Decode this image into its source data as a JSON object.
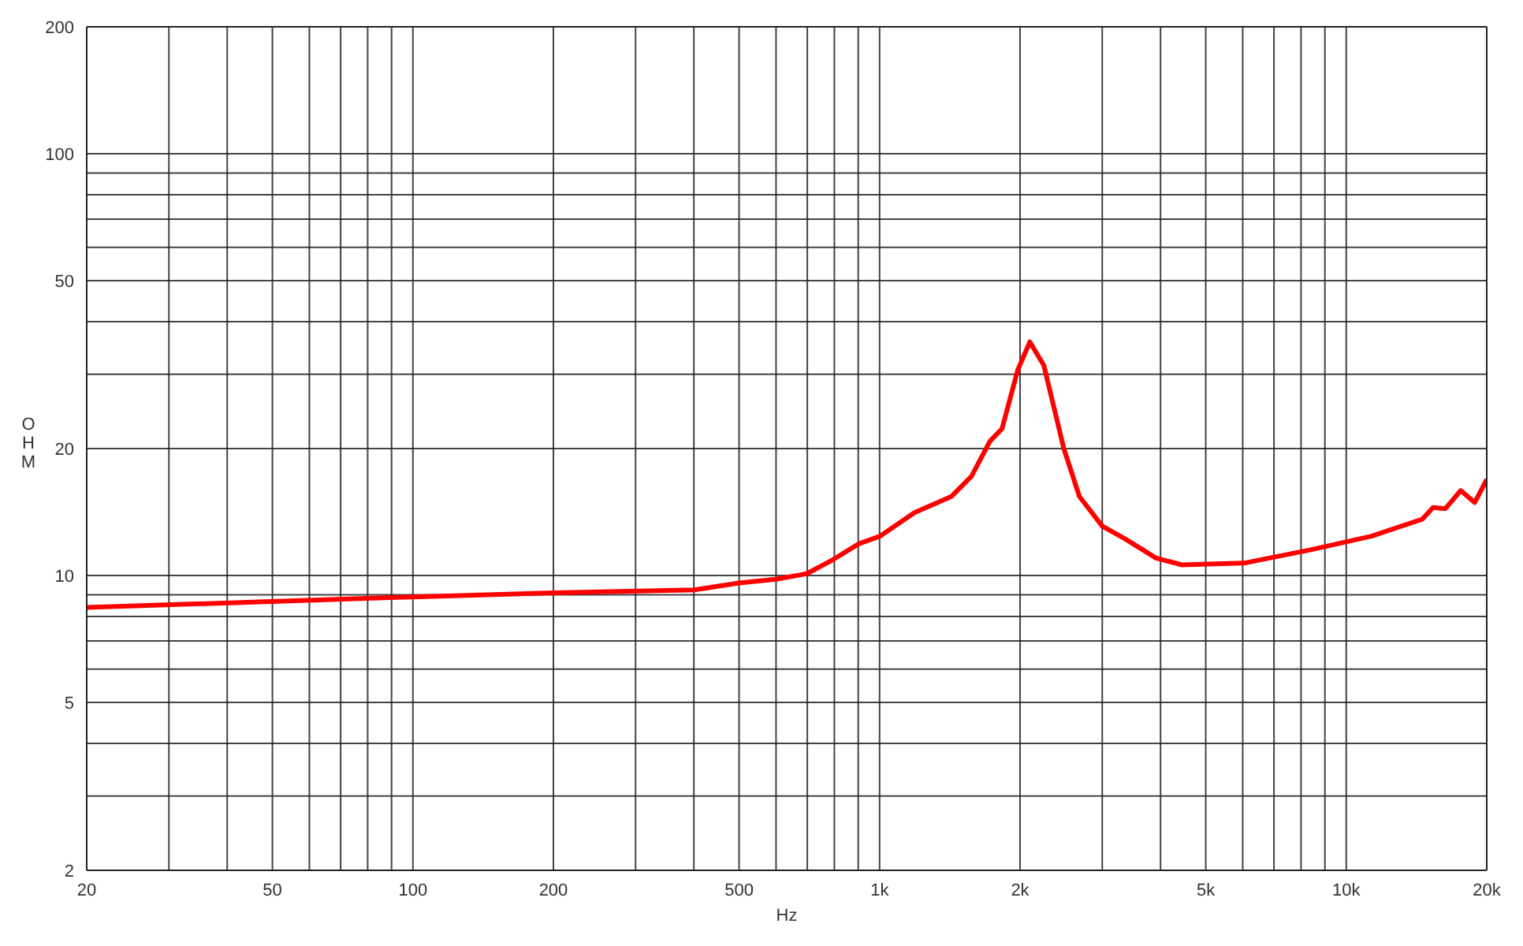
{
  "chart_data": {
    "type": "line",
    "xlabel": "Hz",
    "ylabel": "OHM",
    "log": "xy",
    "grid": true,
    "marker": "none",
    "line_style": "solid",
    "x": [
      20,
      100,
      200,
      401,
      500,
      600,
      698,
      794,
      904,
      1003,
      1188,
      1426,
      1574,
      1723,
      1830,
      1977,
      2099,
      2249,
      2482,
      2680,
      3000,
      3365,
      3911,
      4449,
      6030,
      8354,
      11330,
      14550,
      15350,
      16300,
      17590,
      18850,
      20000
    ],
    "series": [
      {
        "color": "#ff0000",
        "values": [
          8.4,
          8.9,
          9.1,
          9.25,
          9.6,
          9.8,
          10.1,
          10.9,
          11.9,
          12.4,
          14.1,
          15.4,
          17.2,
          20.8,
          22.3,
          30.7,
          35.8,
          31.5,
          20,
          15.4,
          13.1,
          12.2,
          11.0,
          10.6,
          10.7,
          11.5,
          12.4,
          13.6,
          14.5,
          14.4,
          15.9,
          14.9,
          16.9
        ]
      }
    ],
    "xlim": [
      20,
      20000
    ],
    "xticks": [
      20,
      {
        "value": 30,
        "label": null
      },
      {
        "value": 40,
        "label": null
      },
      50,
      {
        "value": 60,
        "label": null
      },
      {
        "value": 70,
        "label": null
      },
      {
        "value": 80,
        "label": null
      },
      {
        "value": 90,
        "label": null
      },
      100,
      200,
      {
        "value": 300,
        "label": null
      },
      {
        "value": 400,
        "label": null
      },
      500,
      {
        "value": 600,
        "label": null
      },
      {
        "value": 700,
        "label": null
      },
      {
        "value": 800,
        "label": null
      },
      {
        "value": 900,
        "label": null
      },
      {
        "value": 1000,
        "label": "1k"
      },
      {
        "value": 2000,
        "label": "2k"
      },
      {
        "value": 3000,
        "label": null
      },
      {
        "value": 4000,
        "label": null
      },
      {
        "value": 5000,
        "label": "5k"
      },
      {
        "value": 6000,
        "label": null
      },
      {
        "value": 7000,
        "label": null
      },
      {
        "value": 8000,
        "label": null
      },
      {
        "value": 9000,
        "label": null
      },
      {
        "value": 10000,
        "label": "10k"
      },
      {
        "value": 20000,
        "label": "20k"
      }
    ],
    "ylim": [
      2,
      200
    ],
    "yticks": [
      2,
      {
        "value": 3,
        "label": null
      },
      {
        "value": 4,
        "label": null
      },
      5,
      {
        "value": 6,
        "label": null
      },
      {
        "value": 7,
        "label": null
      },
      {
        "value": 8,
        "label": null
      },
      {
        "value": 9,
        "label": null
      },
      10,
      20,
      {
        "value": 30,
        "label": null
      },
      {
        "value": 40,
        "label": null
      },
      50,
      {
        "value": 60,
        "label": null
      },
      {
        "value": 70,
        "label": null
      },
      {
        "value": 80,
        "label": null
      },
      {
        "value": 90,
        "label": null
      },
      100,
      200
    ]
  }
}
